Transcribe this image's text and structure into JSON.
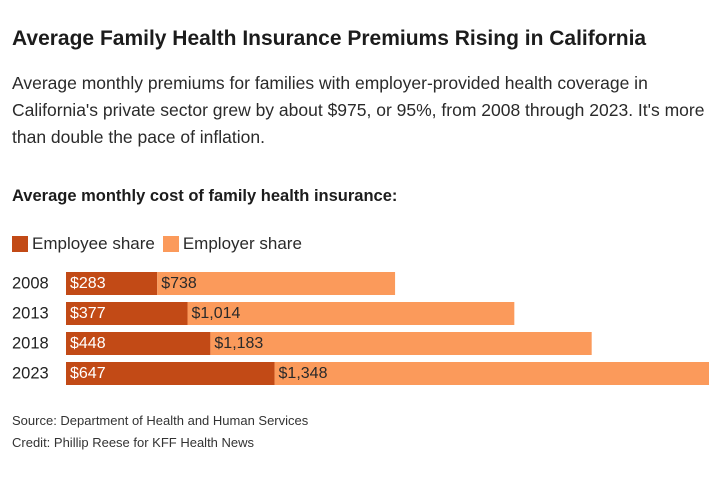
{
  "title": "Average Family Health Insurance Premiums Rising in California",
  "subtitle": "Average monthly premiums for families with employer-provided health coverage in California's private sector grew by about $975, or 95%, from 2008 through 2023. It's more than double the pace of inflation.",
  "section_heading": "Average monthly cost of family health insurance:",
  "legend": [
    {
      "label": "Employee share",
      "color": "#c24a16"
    },
    {
      "label": "Employer share",
      "color": "#fb9a5b"
    }
  ],
  "chart_data": {
    "type": "bar",
    "orientation": "horizontal",
    "stacked": true,
    "categories": [
      "2008",
      "2013",
      "2018",
      "2023"
    ],
    "series": [
      {
        "name": "Employee share",
        "values": [
          283,
          377,
          448,
          647
        ],
        "labels": [
          "$283",
          "$377",
          "$448",
          "$647"
        ],
        "color": "#c24a16"
      },
      {
        "name": "Employer share",
        "values": [
          738,
          1014,
          1183,
          1348
        ],
        "labels": [
          "$738",
          "$1,014",
          "$1,183",
          "$1,348"
        ],
        "color": "#fb9a5b"
      }
    ],
    "xlim": [
      0,
      1995
    ],
    "grid": false,
    "legend_position": "top-left"
  },
  "source": "Source: Department of Health and Human Services",
  "credit": "Credit: Phillip Reese for KFF Health News"
}
